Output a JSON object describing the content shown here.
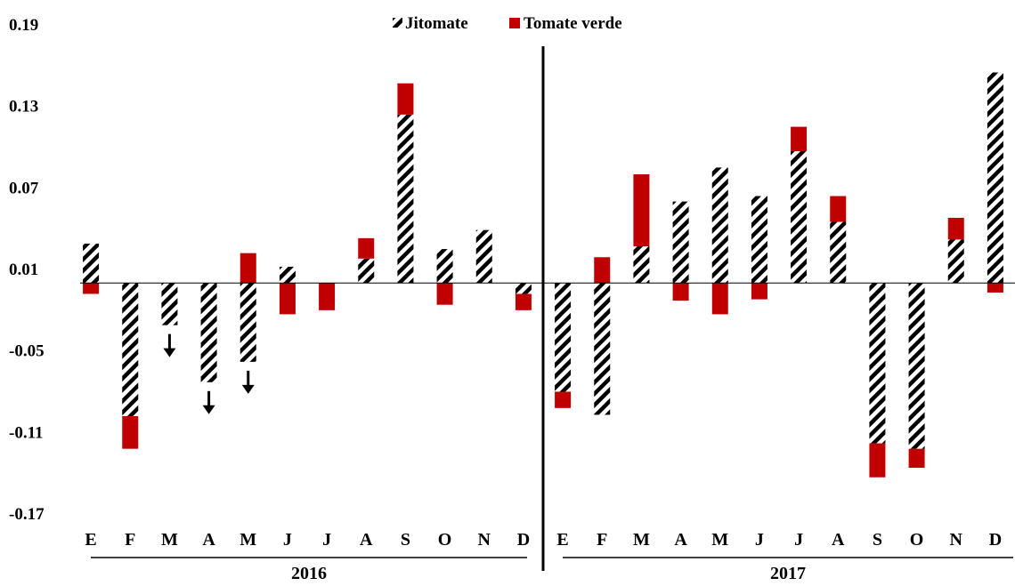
{
  "chart_data": {
    "type": "bar",
    "stacked": true,
    "categories": [
      "E",
      "F",
      "M",
      "A",
      "M",
      "J",
      "J",
      "A",
      "S",
      "O",
      "N",
      "D",
      "E",
      "F",
      "M",
      "A",
      "M",
      "J",
      "J",
      "A",
      "S",
      "O",
      "N",
      "D"
    ],
    "groups": [
      {
        "label": "2016",
        "start": 0,
        "end": 11
      },
      {
        "label": "2017",
        "start": 12,
        "end": 23
      }
    ],
    "series": [
      {
        "name": "Jitomate",
        "pattern": "diagonal-stripes",
        "values": [
          0.029,
          -0.098,
          -0.031,
          -0.073,
          -0.058,
          0.012,
          0.0,
          0.018,
          0.124,
          0.025,
          0.039,
          -0.008,
          -0.08,
          -0.097,
          0.027,
          0.06,
          0.085,
          0.064,
          0.097,
          0.045,
          -0.118,
          -0.122,
          0.032,
          0.155
        ]
      },
      {
        "name": "Tomate verde",
        "color": "#c00000",
        "values": [
          -0.008,
          -0.024,
          0.0,
          0.0,
          0.022,
          -0.023,
          -0.02,
          0.015,
          0.023,
          -0.016,
          0.0,
          -0.012,
          -0.012,
          0.019,
          0.053,
          -0.013,
          -0.023,
          -0.012,
          0.018,
          0.019,
          -0.025,
          -0.014,
          0.016,
          -0.007
        ]
      }
    ],
    "arrows_below": [
      2,
      3,
      4
    ],
    "y_ticks": [
      "0.19",
      "0.13",
      "0.07",
      "0.01",
      "-0.05",
      "-0.11",
      "-0.17"
    ],
    "y_tick_values": [
      0.19,
      0.13,
      0.07,
      0.01,
      -0.05,
      -0.11,
      -0.17
    ],
    "ylim": [
      -0.17,
      0.19
    ],
    "baseline": 0.0,
    "divider_after_index": 11,
    "legend_position": "top-center",
    "grid": false,
    "colors": {
      "red": "#c00000",
      "stripe": "#000000",
      "axis": "#000000"
    }
  }
}
